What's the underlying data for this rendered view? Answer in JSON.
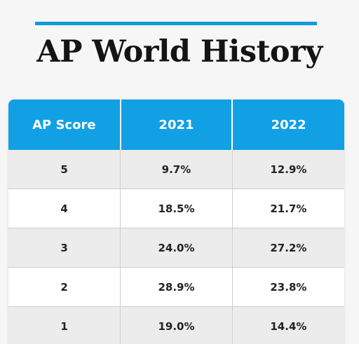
{
  "page": {
    "title": "AP World History"
  },
  "colors": {
    "accent": "#0e9bdc",
    "header_bg": "#12a0e4",
    "header_text": "#ffffff",
    "row_alt": "#ececec"
  },
  "chart_data": {
    "type": "table",
    "title": "AP World History",
    "columns": [
      "AP Score",
      "2021",
      "2022"
    ],
    "rows": [
      [
        "5",
        "9.7%",
        "12.9%"
      ],
      [
        "4",
        "18.5%",
        "21.7%"
      ],
      [
        "3",
        "24.0%",
        "27.2%"
      ],
      [
        "2",
        "28.9%",
        "23.8%"
      ],
      [
        "1",
        "19.0%",
        "14.4%"
      ]
    ]
  }
}
